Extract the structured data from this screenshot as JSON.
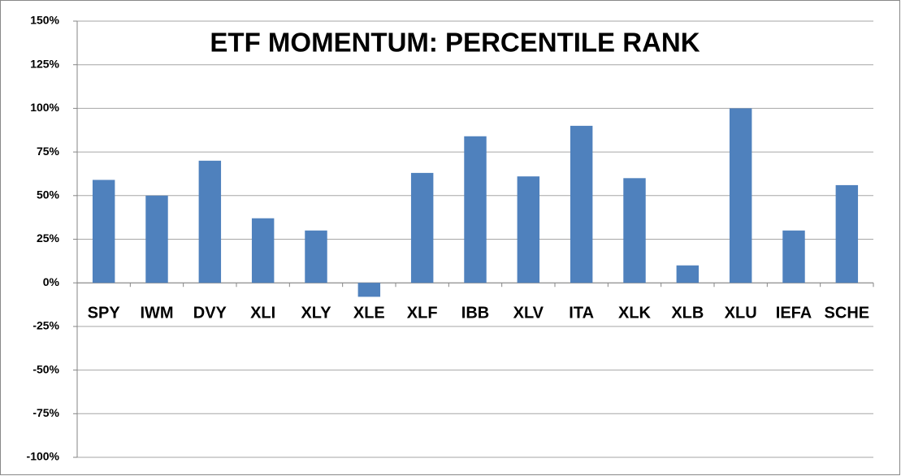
{
  "chart_data": {
    "type": "bar",
    "title": "ETF MOMENTUM: PERCENTILE RANK",
    "categories": [
      "SPY",
      "IWM",
      "DVY",
      "XLI",
      "XLY",
      "XLE",
      "XLF",
      "IBB",
      "XLV",
      "ITA",
      "XLK",
      "XLB",
      "XLU",
      "IEFA",
      "SCHE"
    ],
    "values": [
      59,
      50,
      70,
      37,
      30,
      -8,
      63,
      84,
      61,
      90,
      60,
      10,
      100,
      30,
      56
    ],
    "color": "#4f81bd",
    "ylim": [
      -100,
      150
    ],
    "yticks": [
      {
        "value": -100,
        "label": "-100%"
      },
      {
        "value": -75,
        "label": "-75%"
      },
      {
        "value": -50,
        "label": "-50%"
      },
      {
        "value": -25,
        "label": "-25%"
      },
      {
        "value": 0,
        "label": "0%"
      },
      {
        "value": 25,
        "label": "25%"
      },
      {
        "value": 50,
        "label": "50%"
      },
      {
        "value": 75,
        "label": "75%"
      },
      {
        "value": 100,
        "label": "100%"
      },
      {
        "value": 125,
        "label": "125%"
      },
      {
        "value": 150,
        "label": "150%"
      }
    ],
    "grid": true
  }
}
